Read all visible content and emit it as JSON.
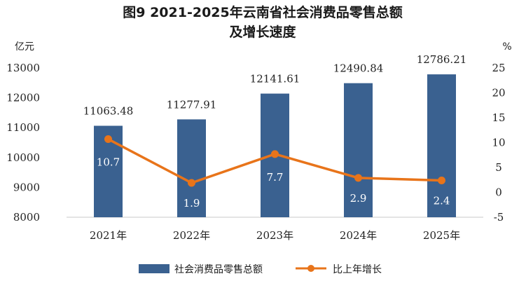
{
  "chart_data": {
    "type": "bar",
    "title_line1": "图9 2021-2025年云南省社会消费品零售总额",
    "title_line2": "及增长速度",
    "categories": [
      "2021年",
      "2022年",
      "2023年",
      "2024年",
      "2025年"
    ],
    "series": [
      {
        "name": "社会消费品零售总额",
        "type": "bar",
        "axis": "left",
        "color": "#3a6190",
        "values": [
          11063.48,
          11277.91,
          12141.61,
          12490.84,
          12786.21
        ],
        "value_labels": [
          "11063.48",
          "11277.91",
          "12141.61",
          "12490.84",
          "12786.21"
        ]
      },
      {
        "name": "比上年增长",
        "type": "line",
        "axis": "right",
        "color": "#e8741a",
        "values": [
          10.7,
          1.9,
          7.7,
          2.9,
          2.4
        ],
        "value_labels": [
          "10.7",
          "1.9",
          "7.7",
          "2.9",
          "2.4"
        ]
      }
    ],
    "y_left": {
      "unit": "亿元",
      "range": [
        8000,
        13000
      ],
      "ticks": [
        8000,
        9000,
        10000,
        11000,
        12000,
        13000
      ]
    },
    "y_right": {
      "unit": "%",
      "range": [
        -5,
        25
      ],
      "ticks": [
        -5,
        0,
        5,
        10,
        15,
        20,
        25
      ]
    },
    "grid": false,
    "legend_position": "bottom"
  }
}
